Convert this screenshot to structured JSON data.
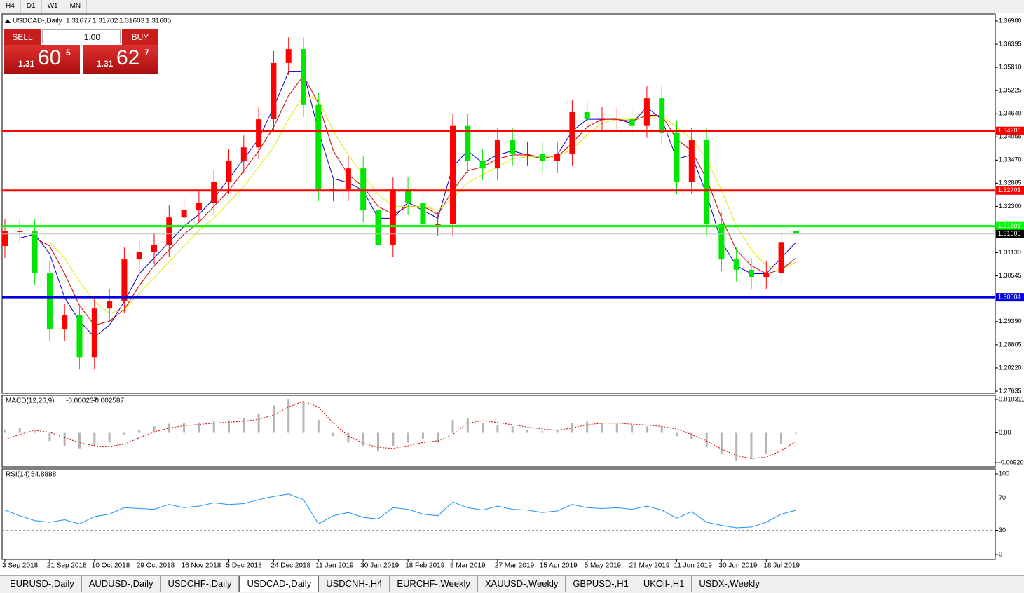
{
  "toolbar": {
    "timeframes": [
      "H4",
      "D1",
      "W1",
      "MN"
    ]
  },
  "trade_panel": {
    "sell": "SELL",
    "buy": "BUY",
    "lot": "1.00",
    "sell_price": {
      "big": "1.31",
      "pips": "60",
      "fraction": "5"
    },
    "buy_price": {
      "big": "1.31",
      "pips": "62",
      "fraction": "7"
    }
  },
  "chart_data": [
    {
      "type": "candlestick",
      "title": "USDCAD-,Daily",
      "categories": [
        "3 Sep 2018",
        null,
        null,
        "21 Sep 2018",
        null,
        null,
        "10 Oct 2018",
        null,
        null,
        "29 Oct 2018",
        null,
        null,
        "16 Nov 2018",
        null,
        null,
        "5 Dec 2018",
        null,
        null,
        "24 Dec 2018",
        null,
        null,
        "11 Jan 2019",
        null,
        null,
        "30 Jan 2019",
        null,
        null,
        "18 Feb 2019",
        null,
        null,
        "8 Mar 2019",
        null,
        null,
        "27 Mar 2019",
        null,
        null,
        "15 Apr 2019",
        null,
        null,
        "5 May 2019",
        null,
        null,
        "23 May 2019",
        null,
        null,
        "11 Jun 2019",
        null,
        null,
        "30 Jun 2019",
        null,
        null,
        "18 Jul 2019",
        null,
        null
      ],
      "open": [
        1.313,
        1.3167,
        1.3167,
        1.3061,
        1.2919,
        1.2955,
        1.2848,
        1.2972,
        1.299,
        1.3096,
        1.3114,
        1.3132,
        1.3202,
        1.322,
        1.3238,
        1.3291,
        1.3344,
        1.3379,
        1.345,
        1.3592,
        1.3627,
        1.3486,
        1.3273,
        1.3273,
        1.3326,
        1.322,
        1.3132,
        1.3273,
        1.3238,
        1.3185,
        1.3185,
        1.3433,
        1.3344,
        1.3326,
        1.3397,
        1.3362,
        1.3362,
        1.3344,
        1.3362,
        1.3468,
        1.345,
        1.345,
        1.345,
        1.3433,
        1.3503,
        1.3415,
        1.3291,
        1.3397,
        1.3185,
        1.3096,
        1.307,
        1.3052,
        1.3061,
        1.31677
      ],
      "high": [
        1.3197,
        1.3197,
        1.3197,
        1.3091,
        1.2985,
        1.2985,
        1.3002,
        1.302,
        1.3126,
        1.3144,
        1.3162,
        1.3232,
        1.325,
        1.3268,
        1.3321,
        1.3374,
        1.3409,
        1.348,
        1.3622,
        1.3657,
        1.3657,
        1.3516,
        1.3303,
        1.3356,
        1.3356,
        1.325,
        1.3303,
        1.3303,
        1.3268,
        1.3215,
        1.3463,
        1.3463,
        1.3374,
        1.3427,
        1.3427,
        1.3392,
        1.3392,
        1.3392,
        1.3498,
        1.3498,
        1.348,
        1.348,
        1.348,
        1.3533,
        1.3533,
        1.3445,
        1.3427,
        1.3427,
        1.3215,
        1.3126,
        1.31,
        1.3091,
        1.317,
        1.31702
      ],
      "low": [
        1.31,
        1.3137,
        1.3031,
        1.2889,
        1.2889,
        1.2818,
        1.2818,
        1.2942,
        1.296,
        1.3066,
        1.3084,
        1.3102,
        1.3172,
        1.319,
        1.3208,
        1.3261,
        1.3314,
        1.3349,
        1.342,
        1.3562,
        1.3456,
        1.3243,
        1.3243,
        1.3243,
        1.319,
        1.3102,
        1.3102,
        1.3208,
        1.3155,
        1.3155,
        1.3155,
        1.3314,
        1.3296,
        1.3296,
        1.3332,
        1.3332,
        1.3314,
        1.3314,
        1.3332,
        1.342,
        1.342,
        1.342,
        1.3403,
        1.3403,
        1.3385,
        1.3261,
        1.3261,
        1.3155,
        1.3066,
        1.304,
        1.3022,
        1.3022,
        1.3031,
        1.31603
      ],
      "close": [
        1.3167,
        1.3167,
        1.3061,
        1.2919,
        1.2955,
        1.2848,
        1.2972,
        1.299,
        1.3096,
        1.3114,
        1.3132,
        1.3202,
        1.322,
        1.3238,
        1.3291,
        1.3344,
        1.3379,
        1.345,
        1.3592,
        1.3627,
        1.3486,
        1.3273,
        1.3273,
        1.3326,
        1.322,
        1.3132,
        1.3273,
        1.3238,
        1.3185,
        1.3185,
        1.3433,
        1.3344,
        1.3326,
        1.3397,
        1.3362,
        1.3362,
        1.3344,
        1.3362,
        1.3468,
        1.345,
        1.345,
        1.345,
        1.3433,
        1.3503,
        1.3415,
        1.3291,
        1.3397,
        1.3185,
        1.3096,
        1.307,
        1.3052,
        1.3061,
        1.314,
        1.31605
      ],
      "up_color": "#ff0000",
      "down_color": "#00e600",
      "moving_averages": [
        {
          "color": "#0000cc",
          "values": [
            null,
            1.315,
            1.316,
            1.311,
            1.3,
            1.294,
            1.29,
            1.293,
            1.299,
            1.306,
            1.31,
            1.314,
            1.318,
            1.321,
            1.325,
            1.33,
            1.335,
            1.34,
            1.348,
            1.357,
            1.357,
            1.342,
            1.33,
            1.329,
            1.327,
            1.32,
            1.32,
            1.324,
            1.322,
            1.32,
            1.333,
            1.337,
            1.334,
            1.336,
            1.337,
            1.336,
            1.335,
            1.336,
            1.342,
            1.345,
            1.345,
            1.345,
            1.344,
            1.348,
            1.345,
            1.335,
            1.336,
            1.326,
            1.314,
            1.308,
            1.306,
            1.306,
            1.31,
            1.314
          ]
        },
        {
          "color": "#cc0000",
          "values": [
            null,
            null,
            1.315,
            1.313,
            1.306,
            1.298,
            1.293,
            1.294,
            1.297,
            1.303,
            1.308,
            1.312,
            1.316,
            1.319,
            1.323,
            1.327,
            1.332,
            1.337,
            1.343,
            1.351,
            1.356,
            1.349,
            1.337,
            1.331,
            1.328,
            1.323,
            1.321,
            1.323,
            1.323,
            1.321,
            1.327,
            1.332,
            1.333,
            1.335,
            1.336,
            1.336,
            1.3355,
            1.3355,
            1.339,
            1.343,
            1.345,
            1.345,
            1.3445,
            1.346,
            1.346,
            1.34,
            1.337,
            1.33,
            1.32,
            1.312,
            1.308,
            1.306,
            1.307,
            1.31
          ]
        },
        {
          "color": "#e6e600",
          "values": [
            null,
            null,
            null,
            1.314,
            1.31,
            1.304,
            1.299,
            1.296,
            1.297,
            1.301,
            1.305,
            1.309,
            1.313,
            1.317,
            1.32,
            1.324,
            1.328,
            1.333,
            1.338,
            1.345,
            1.351,
            1.35,
            1.342,
            1.336,
            1.331,
            1.326,
            1.323,
            1.323,
            1.323,
            1.322,
            1.325,
            1.329,
            1.331,
            1.333,
            1.335,
            1.3355,
            1.3355,
            1.3355,
            1.3375,
            1.341,
            1.344,
            1.345,
            1.345,
            1.3455,
            1.346,
            1.343,
            1.34,
            1.335,
            1.327,
            1.318,
            1.312,
            1.308,
            1.307,
            1.309
          ]
        }
      ],
      "levels": [
        {
          "value": 1.34206,
          "color": "#ff0000"
        },
        {
          "value": 1.32701,
          "color": "#ff0000"
        },
        {
          "value": 1.31801,
          "color": "#00ff00"
        },
        {
          "value": 1.30004,
          "color": "#0000dd"
        }
      ],
      "ylim": [
        1.27582,
        1.37157
      ],
      "yticks": [
        {
          "value": 1.3698,
          "label": "1.36980"
        },
        1.36395,
        {
          "value": 1.3581,
          "label": "1.35810"
        },
        1.35225,
        {
          "value": 1.3464,
          "label": "1.34640"
        },
        1.34055,
        {
          "value": 1.3347,
          "label": "1.33470"
        },
        1.32885,
        {
          "value": 1.323,
          "label": "1.32300"
        },
        {
          "value": 1.3113,
          "label": "1.31130"
        },
        1.30545,
        {
          "value": 1.2939,
          "label": "1.29390"
        },
        1.28805,
        {
          "value": 1.2822,
          "label": "1.28220"
        },
        1.27635
      ]
    },
    {
      "type": "macd",
      "title": "MACD(12,26,9)",
      "macd": [
        0.001,
        0.0015,
        0.0005,
        -0.0025,
        -0.004,
        -0.0048,
        -0.004,
        -0.003,
        -0.0005,
        0.001,
        0.002,
        0.0028,
        0.003,
        0.0032,
        0.0035,
        0.004,
        0.0045,
        0.006,
        0.0085,
        0.0105,
        0.0095,
        0.004,
        -0.001,
        -0.003,
        -0.004,
        -0.0055,
        -0.004,
        -0.003,
        -0.002,
        -0.003,
        0.004,
        0.0045,
        0.003,
        0.0025,
        0.002,
        0.001,
        0.0005,
        0.001,
        0.003,
        0.0035,
        0.003,
        0.0028,
        0.0025,
        0.002,
        0.002,
        -0.001,
        -0.002,
        -0.0045,
        -0.0065,
        -0.0085,
        -0.008,
        -0.0065,
        -0.0035,
        -0.000237
      ],
      "signal": [
        -0.002,
        -0.0005,
        0.0008,
        0.0002,
        -0.0015,
        -0.003,
        -0.004,
        -0.0042,
        -0.0035,
        -0.0015,
        0.0003,
        0.0015,
        0.0022,
        0.0026,
        0.003,
        0.0033,
        0.0036,
        0.0042,
        0.0055,
        0.008,
        0.0098,
        0.008,
        0.003,
        -0.001,
        -0.0032,
        -0.0045,
        -0.0048,
        -0.004,
        -0.003,
        -0.0025,
        -0.0005,
        0.003,
        0.0038,
        0.0032,
        0.0025,
        0.0018,
        0.0012,
        0.0008,
        0.0015,
        0.0025,
        0.003,
        0.003,
        0.0027,
        0.0024,
        0.002,
        0.0012,
        -0.0005,
        -0.0025,
        -0.005,
        -0.007,
        -0.008,
        -0.0075,
        -0.0055,
        -0.002587
      ],
      "macd_color": "#b4b4b4",
      "signal_color": "#cc0000",
      "ylim": [
        -0.010504,
        0.011612
      ],
      "yticks": [
        0.010311,
        {
          "value": 0,
          "label": "0.00"
        },
        -0.009203
      ]
    },
    {
      "type": "line",
      "title": "RSI(14)",
      "values": [
        55,
        48,
        42,
        40,
        43,
        38,
        47,
        50,
        58,
        57,
        56,
        62,
        58,
        60,
        64,
        62,
        63,
        68,
        72,
        75,
        68,
        38,
        48,
        52,
        46,
        44,
        58,
        56,
        50,
        48,
        65,
        58,
        55,
        60,
        56,
        55,
        52,
        54,
        62,
        58,
        57,
        58,
        56,
        60,
        55,
        45,
        53,
        40,
        36,
        33,
        34,
        40,
        50,
        54.8888
      ],
      "color": "#1e90ff",
      "levels": [
        70,
        30
      ],
      "ylim": [
        -6.1,
        106.1
      ],
      "yticks": [
        100,
        70,
        30,
        0
      ]
    }
  ],
  "tabs": [
    "EURUSD-,Daily",
    "AUDUSD-,Daily",
    "USDCHF-,Daily",
    "USDCAD-,Daily",
    "USDCNH-,H4",
    "EURCHF-,Weekly",
    "XAUUSD-,Weekly",
    "GBPUSD-,H1",
    "UKOil-,H1",
    "USDX-,Weekly"
  ],
  "active_tab": 3
}
